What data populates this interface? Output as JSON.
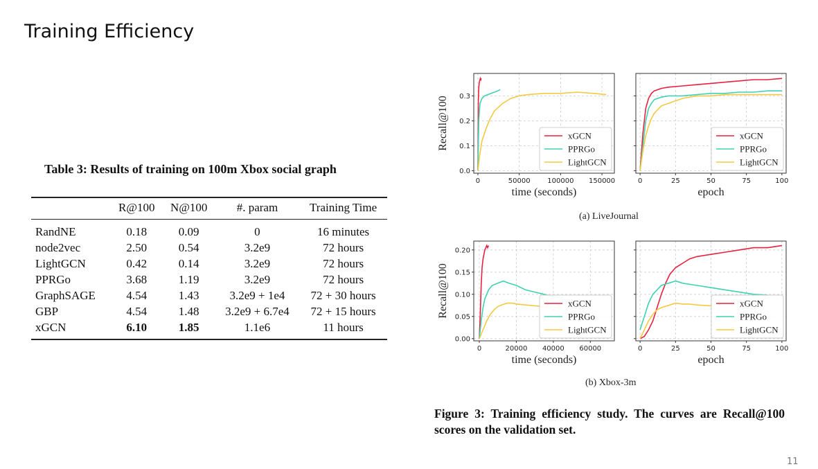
{
  "slide": {
    "title": "Training Efficiency",
    "page_number": "11"
  },
  "table": {
    "caption": "Table 3: Results of training on 100m Xbox social graph",
    "headers": [
      "",
      "R@100",
      "N@100",
      "#. param",
      "Training Time"
    ],
    "rows": [
      {
        "method": "RandNE",
        "r100": "0.18",
        "n100": "0.09",
        "param": "0",
        "time": "16 minutes"
      },
      {
        "method": "node2vec",
        "r100": "2.50",
        "n100": "0.54",
        "param": "3.2e9",
        "time": "72 hours"
      },
      {
        "method": "LightGCN",
        "r100": "0.42",
        "n100": "0.14",
        "param": "3.2e9",
        "time": "72 hours"
      },
      {
        "method": "PPRGo",
        "r100": "3.68",
        "n100": "1.19",
        "param": "3.2e9",
        "time": "72 hours"
      },
      {
        "method": "GraphSAGE",
        "r100": "4.54",
        "n100": "1.43",
        "param": "3.2e9 + 1e4",
        "time": "72 + 30 hours"
      },
      {
        "method": "GBP",
        "r100": "4.54",
        "n100": "1.48",
        "param": "3.2e9 + 6.7e4",
        "time": "72 + 15 hours"
      },
      {
        "method": "xGCN",
        "r100": "6.10",
        "n100": "1.85",
        "param": "1.1e6",
        "time": "11 hours",
        "best": true
      }
    ]
  },
  "figure": {
    "caption": "Figure 3: Training efficiency study. The curves are Recall@100 scores on the validation set.",
    "subcaption_a": "(a) LiveJournal",
    "subcaption_b": "(b) Xbox-3m"
  },
  "series_colors": {
    "xGCN": "#e8203e",
    "PPRGo": "#3dd2b1",
    "LightGCN": "#f5c842"
  },
  "chart_data": [
    {
      "type": "line",
      "dataset": "LiveJournal",
      "xlabel": "time (seconds)",
      "ylabel": "Recall@100",
      "xlim": [
        -5000,
        165000
      ],
      "ylim": [
        -0.01,
        0.39
      ],
      "xticks": [
        0,
        50000,
        100000,
        150000
      ],
      "xtick_labels": [
        "0",
        "50000",
        "100000",
        "150000"
      ],
      "yticks": [
        0.0,
        0.1,
        0.2,
        0.3
      ],
      "ytick_labels": [
        "0.0",
        "0.1",
        "0.2",
        "0.3"
      ],
      "grid": true,
      "legend": "bottom-right",
      "series": [
        {
          "name": "xGCN",
          "x": [
            0,
            500,
            1000,
            1500,
            2000,
            2500,
            3000,
            3500,
            4000
          ],
          "y": [
            0.0,
            0.28,
            0.33,
            0.35,
            0.36,
            0.365,
            0.37,
            0.365,
            0.37
          ]
        },
        {
          "name": "PPRGo",
          "x": [
            0,
            1000,
            2500,
            5000,
            8000,
            12000,
            16000,
            20000,
            24000,
            27000
          ],
          "y": [
            0.0,
            0.2,
            0.27,
            0.29,
            0.3,
            0.305,
            0.31,
            0.315,
            0.32,
            0.325
          ]
        },
        {
          "name": "LightGCN",
          "x": [
            0,
            2000,
            5000,
            10000,
            15000,
            20000,
            30000,
            40000,
            50000,
            60000,
            80000,
            100000,
            120000,
            140000,
            155000
          ],
          "y": [
            0.0,
            0.06,
            0.12,
            0.17,
            0.21,
            0.24,
            0.27,
            0.29,
            0.3,
            0.305,
            0.31,
            0.31,
            0.315,
            0.31,
            0.305
          ]
        }
      ]
    },
    {
      "type": "line",
      "dataset": "LiveJournal",
      "xlabel": "epoch",
      "ylabel": "",
      "xlim": [
        -3,
        103
      ],
      "ylim": [
        -0.01,
        0.39
      ],
      "xticks": [
        0,
        25,
        50,
        75,
        100
      ],
      "xtick_labels": [
        "0",
        "25",
        "50",
        "75",
        "100"
      ],
      "yticks": [
        0.0,
        0.1,
        0.2,
        0.3
      ],
      "ytick_labels": [],
      "grid": true,
      "legend": "bottom-right",
      "series": [
        {
          "name": "xGCN",
          "x": [
            0,
            2,
            4,
            6,
            8,
            10,
            15,
            20,
            30,
            40,
            50,
            60,
            70,
            80,
            90,
            100
          ],
          "y": [
            0.0,
            0.15,
            0.25,
            0.29,
            0.31,
            0.32,
            0.33,
            0.335,
            0.34,
            0.345,
            0.35,
            0.355,
            0.36,
            0.365,
            0.365,
            0.37
          ]
        },
        {
          "name": "PPRGo",
          "x": [
            0,
            2,
            4,
            6,
            8,
            10,
            15,
            20,
            30,
            40,
            50,
            60,
            70,
            80,
            90,
            100
          ],
          "y": [
            0.0,
            0.1,
            0.2,
            0.25,
            0.27,
            0.285,
            0.295,
            0.3,
            0.3,
            0.305,
            0.31,
            0.31,
            0.315,
            0.315,
            0.32,
            0.32
          ]
        },
        {
          "name": "LightGCN",
          "x": [
            0,
            2,
            4,
            6,
            8,
            10,
            15,
            20,
            25,
            30,
            40,
            50,
            60,
            70,
            80,
            90,
            100
          ],
          "y": [
            0.0,
            0.08,
            0.14,
            0.18,
            0.21,
            0.23,
            0.26,
            0.27,
            0.28,
            0.29,
            0.3,
            0.3,
            0.305,
            0.305,
            0.305,
            0.305,
            0.305
          ]
        }
      ]
    },
    {
      "type": "line",
      "dataset": "Xbox-3m",
      "xlabel": "time (seconds)",
      "ylabel": "Recall@100",
      "xlim": [
        -3000,
        73000
      ],
      "ylim": [
        -0.005,
        0.22
      ],
      "xticks": [
        0,
        20000,
        40000,
        60000
      ],
      "xtick_labels": [
        "0",
        "20000",
        "40000",
        "60000"
      ],
      "yticks": [
        0.0,
        0.05,
        0.1,
        0.15,
        0.2
      ],
      "ytick_labels": [
        "0.00",
        "0.05",
        "0.10",
        "0.15",
        "0.20"
      ],
      "grid": true,
      "legend": "bottom-right",
      "series": [
        {
          "name": "xGCN",
          "x": [
            0,
            500,
            1000,
            1500,
            2000,
            2500,
            3000,
            3500,
            4000,
            4500,
            5000
          ],
          "y": [
            0.0,
            0.05,
            0.12,
            0.16,
            0.18,
            0.19,
            0.2,
            0.205,
            0.21,
            0.205,
            0.21
          ]
        },
        {
          "name": "PPRGo",
          "x": [
            0,
            1000,
            2000,
            3000,
            5000,
            7000,
            10000,
            13000,
            16000,
            20000,
            25000,
            30000,
            35000,
            40000,
            45000
          ],
          "y": [
            0.0,
            0.04,
            0.07,
            0.09,
            0.11,
            0.12,
            0.125,
            0.13,
            0.125,
            0.12,
            0.11,
            0.105,
            0.1,
            0.095,
            0.092
          ]
        },
        {
          "name": "LightGCN",
          "x": [
            0,
            2000,
            4000,
            6000,
            8000,
            10000,
            12000,
            15000,
            18000,
            20000,
            25000,
            30000,
            35000,
            40000,
            45000
          ],
          "y": [
            0.0,
            0.02,
            0.04,
            0.055,
            0.065,
            0.072,
            0.076,
            0.08,
            0.08,
            0.078,
            0.076,
            0.074,
            0.072,
            0.071,
            0.07
          ]
        }
      ]
    },
    {
      "type": "line",
      "dataset": "Xbox-3m",
      "xlabel": "epoch",
      "ylabel": "",
      "xlim": [
        -3,
        103
      ],
      "ylim": [
        -0.005,
        0.22
      ],
      "xticks": [
        0,
        25,
        50,
        75,
        100
      ],
      "xtick_labels": [
        "0",
        "25",
        "50",
        "75",
        "100"
      ],
      "yticks": [
        0.0,
        0.05,
        0.1,
        0.15,
        0.2
      ],
      "ytick_labels": [],
      "grid": true,
      "legend": "bottom-right",
      "series": [
        {
          "name": "xGCN",
          "x": [
            0,
            3,
            6,
            9,
            12,
            15,
            18,
            21,
            25,
            30,
            35,
            40,
            50,
            60,
            70,
            80,
            90,
            100
          ],
          "y": [
            0.0,
            0.005,
            0.02,
            0.04,
            0.07,
            0.1,
            0.125,
            0.145,
            0.16,
            0.17,
            0.18,
            0.185,
            0.19,
            0.195,
            0.2,
            0.205,
            0.205,
            0.21
          ]
        },
        {
          "name": "PPRGo",
          "x": [
            0,
            3,
            6,
            9,
            12,
            15,
            20,
            25,
            30,
            40,
            50,
            60,
            70,
            80,
            90
          ],
          "y": [
            0.02,
            0.05,
            0.08,
            0.1,
            0.11,
            0.12,
            0.125,
            0.13,
            0.125,
            0.12,
            0.115,
            0.11,
            0.105,
            0.1,
            0.098
          ]
        },
        {
          "name": "LightGCN",
          "x": [
            0,
            3,
            6,
            9,
            12,
            15,
            20,
            25,
            30,
            35,
            40,
            50
          ],
          "y": [
            0.0,
            0.02,
            0.04,
            0.055,
            0.065,
            0.07,
            0.075,
            0.08,
            0.078,
            0.078,
            0.076,
            0.074
          ]
        }
      ]
    }
  ]
}
